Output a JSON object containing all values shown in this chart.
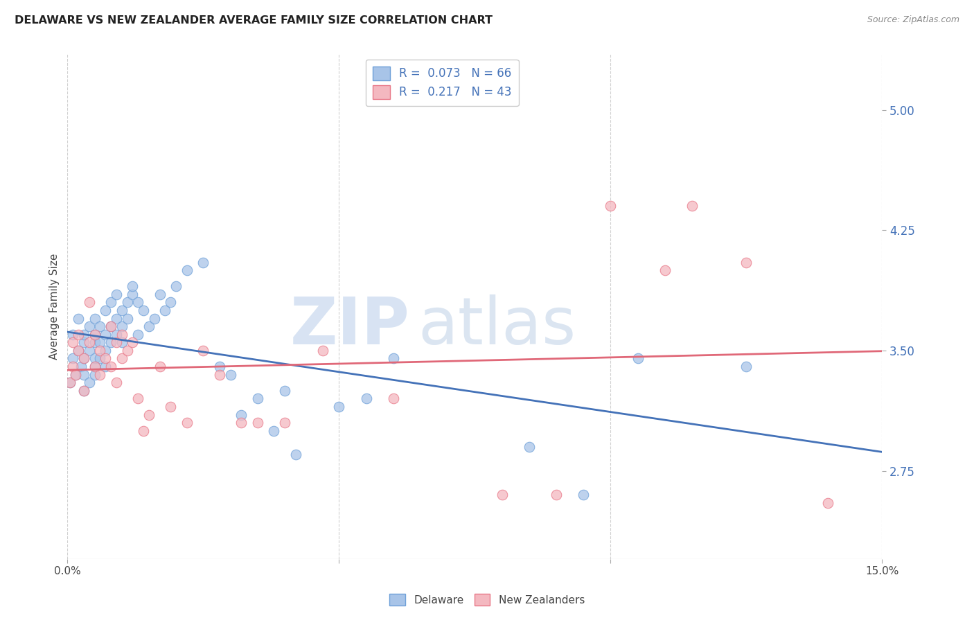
{
  "title": "DELAWARE VS NEW ZEALANDER AVERAGE FAMILY SIZE CORRELATION CHART",
  "source": "Source: ZipAtlas.com",
  "ylabel": "Average Family Size",
  "ytick_vals": [
    2.75,
    3.5,
    4.25,
    5.0
  ],
  "ytick_labels": [
    "2.75",
    "3.50",
    "4.25",
    "5.00"
  ],
  "xlim": [
    0.0,
    0.15
  ],
  "ylim": [
    2.2,
    5.35
  ],
  "xtick_vals": [
    0.0,
    0.05,
    0.1,
    0.15
  ],
  "xtick_labels": [
    "0.0%",
    "",
    "",
    "15.0%"
  ],
  "delaware_R": "0.073",
  "delaware_N": "66",
  "nz_R": "0.217",
  "nz_N": "43",
  "delaware_color": "#a8c4e8",
  "delaware_edge_color": "#6ea0d8",
  "delaware_line_color": "#4472b8",
  "nz_color": "#f4b8c0",
  "nz_edge_color": "#e87888",
  "nz_line_color": "#e06878",
  "delaware_x": [
    0.0005,
    0.001,
    0.001,
    0.0015,
    0.002,
    0.002,
    0.0025,
    0.003,
    0.003,
    0.003,
    0.003,
    0.003,
    0.004,
    0.004,
    0.004,
    0.005,
    0.005,
    0.005,
    0.005,
    0.005,
    0.005,
    0.006,
    0.006,
    0.006,
    0.007,
    0.007,
    0.007,
    0.007,
    0.008,
    0.008,
    0.008,
    0.009,
    0.009,
    0.009,
    0.01,
    0.01,
    0.01,
    0.011,
    0.011,
    0.012,
    0.012,
    0.013,
    0.013,
    0.014,
    0.015,
    0.016,
    0.017,
    0.018,
    0.019,
    0.02,
    0.022,
    0.025,
    0.028,
    0.03,
    0.032,
    0.035,
    0.038,
    0.04,
    0.042,
    0.05,
    0.055,
    0.06,
    0.085,
    0.095,
    0.105,
    0.125
  ],
  "delaware_y": [
    3.3,
    3.45,
    3.6,
    3.35,
    3.5,
    3.7,
    3.4,
    3.35,
    3.55,
    3.25,
    3.45,
    3.6,
    3.5,
    3.3,
    3.65,
    3.55,
    3.4,
    3.45,
    3.6,
    3.35,
    3.7,
    3.65,
    3.55,
    3.45,
    3.75,
    3.6,
    3.5,
    3.4,
    3.8,
    3.65,
    3.55,
    3.7,
    3.85,
    3.6,
    3.75,
    3.65,
    3.55,
    3.8,
    3.7,
    3.85,
    3.9,
    3.8,
    3.6,
    3.75,
    3.65,
    3.7,
    3.85,
    3.75,
    3.8,
    3.9,
    4.0,
    4.05,
    3.4,
    3.35,
    3.1,
    3.2,
    3.0,
    3.25,
    2.85,
    3.15,
    3.2,
    3.45,
    2.9,
    2.6,
    3.45,
    3.4
  ],
  "nz_x": [
    0.0005,
    0.001,
    0.001,
    0.0015,
    0.002,
    0.002,
    0.003,
    0.003,
    0.004,
    0.004,
    0.005,
    0.005,
    0.006,
    0.006,
    0.007,
    0.008,
    0.008,
    0.009,
    0.009,
    0.01,
    0.01,
    0.011,
    0.012,
    0.013,
    0.014,
    0.015,
    0.017,
    0.019,
    0.022,
    0.025,
    0.028,
    0.032,
    0.035,
    0.04,
    0.047,
    0.06,
    0.08,
    0.09,
    0.1,
    0.11,
    0.115,
    0.125,
    0.14
  ],
  "nz_y": [
    3.3,
    3.4,
    3.55,
    3.35,
    3.5,
    3.6,
    3.25,
    3.45,
    3.8,
    3.55,
    3.4,
    3.6,
    3.35,
    3.5,
    3.45,
    3.65,
    3.4,
    3.55,
    3.3,
    3.45,
    3.6,
    3.5,
    3.55,
    3.2,
    3.0,
    3.1,
    3.4,
    3.15,
    3.05,
    3.5,
    3.35,
    3.05,
    3.05,
    3.05,
    3.5,
    3.2,
    2.6,
    2.6,
    4.4,
    4.0,
    4.4,
    4.05,
    2.55
  ],
  "watermark_zip": "ZIP",
  "watermark_atlas": "atlas",
  "background_color": "#ffffff",
  "grid_color": "#d0d0d0",
  "legend_text_color": "#4472b8"
}
